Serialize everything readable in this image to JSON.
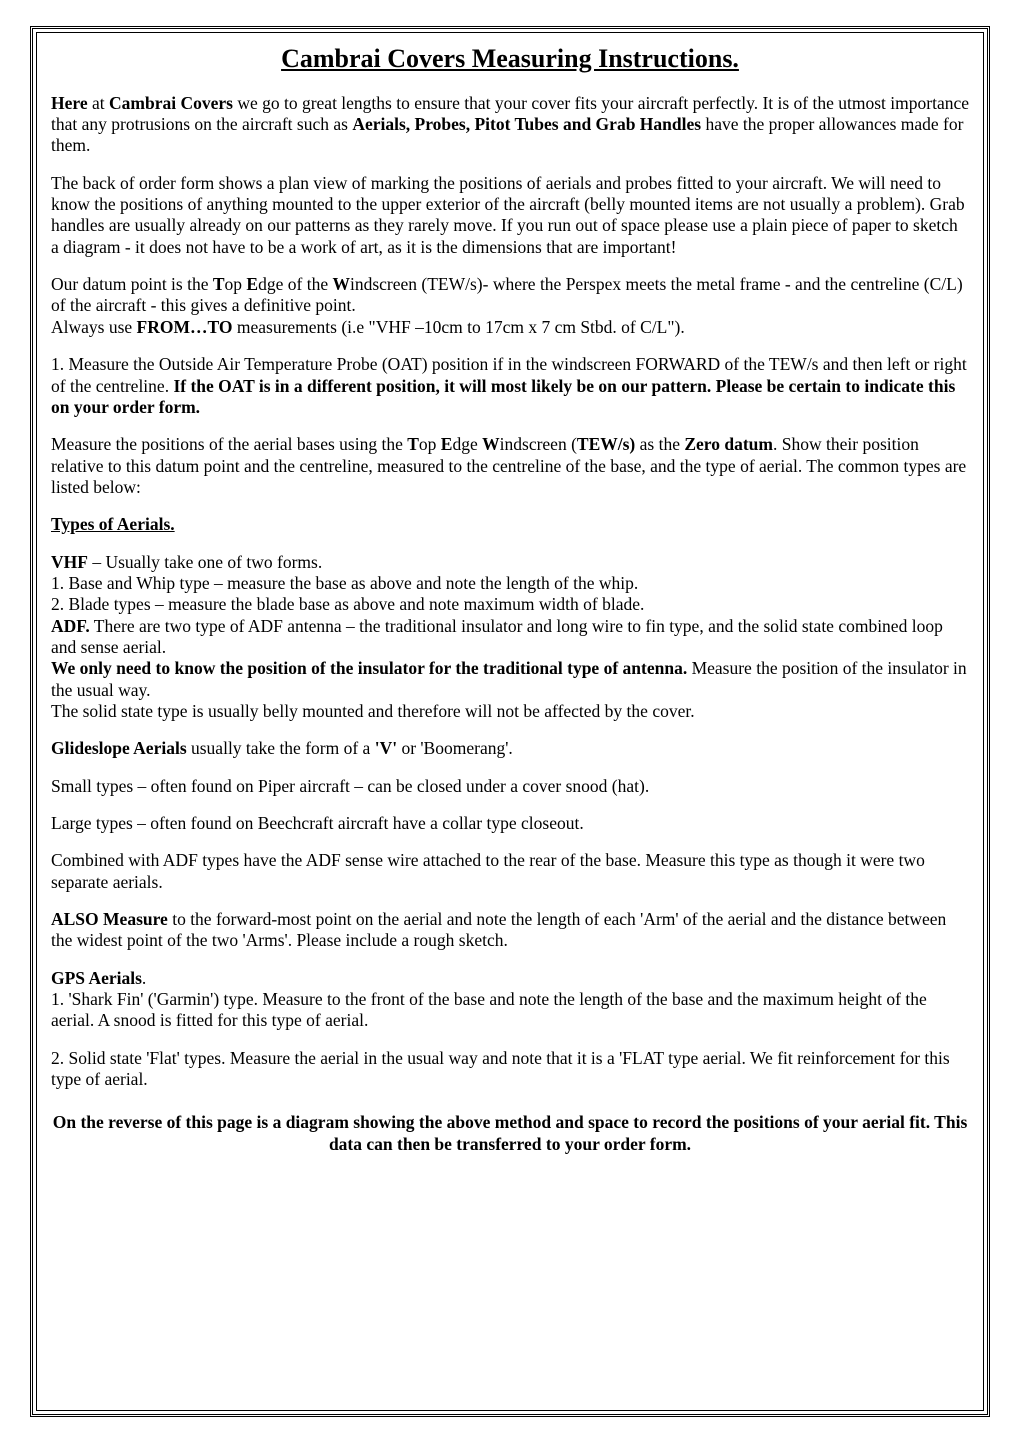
{
  "title": "Cambrai Covers Measuring Instructions.",
  "para1": {
    "lead_bold1": "Here",
    "mid1": " at ",
    "lead_bold2": "Cambrai Covers",
    "mid2": " we go to great lengths to ensure that your cover fits your aircraft perfectly.  It is of the utmost importance that any protrusions on the aircraft such as ",
    "bold_list": "Aerials, Probes, Pitot Tubes and Grab Handles",
    "tail": " have the proper allowances made for them."
  },
  "para2": "The back of order form shows a plan view of marking the positions of aerials and probes fitted to your aircraft.  We will need to know the positions of anything mounted to the upper exterior of the aircraft (belly mounted items are not usually a problem).  Grab handles are usually already on our patterns as they rarely move.  If you run out of space please use a plain piece of paper to sketch a diagram - it does not have to be a work of art, as it is the dimensions that are important!",
  "para3": {
    "pre": "Our datum point is the ",
    "T": "T",
    "t1": "op ",
    "E": "E",
    "t2": "dge of the ",
    "W": "W",
    "post": "indscreen (TEW/s)- where the Perspex meets the metal frame - and the centreline (C/L) of the aircraft - this gives a definitive point.",
    "line2a": "Always use ",
    "fromto": "FROM…TO",
    "line2b": "  measurements (i.e \"VHF –10cm to 17cm x 7 cm Stbd. of C/L\")."
  },
  "para4": {
    "line1": "1.  Measure the Outside Air Temperature Probe (OAT) position if in the windscreen FORWARD of the TEW/s and then left or right of the centreline.  ",
    "bold": "If the OAT is in a different position, it will most likely be on our pattern. Please be certain to indicate this on your order form."
  },
  "para5": {
    "pre": "Measure the positions of the aerial bases using the ",
    "T": "T",
    "t1": "op ",
    "E": "E",
    "t2": "dge ",
    "W": "W",
    "t3": "indscreen (",
    "tews": "TEW/s)",
    "t4": " as the ",
    "zero": "Zero datum",
    "post": ". Show their position relative to this datum point and the centreline, measured to the centreline of the base, and the type of aerial. The common types are listed below:"
  },
  "types_heading": "Types of Aerials.",
  "vhf": {
    "lead": "VHF",
    "rest": " – Usually take one of two forms.",
    "l1": "1.  Base and Whip type – measure the base as above and note the length of the whip.",
    "l2": "2.  Blade types – measure the blade base as above and note maximum width of blade."
  },
  "adf": {
    "lead": "ADF.",
    "rest": "  There are two type of ADF antenna – the traditional insulator and long wire to fin type, and the solid state combined loop and sense aerial.",
    "bold_line": "We only need to know the position of the insulator for the traditional type of antenna.",
    "tail2": "  Measure the position of the insulator in the usual way.",
    "line3": "The solid state type is usually belly mounted and therefore will not be affected by the cover."
  },
  "glideslope": {
    "lead": "Glideslope Aerials",
    "mid": " usually take the form of a ",
    "v": "'V'",
    "tail": " or 'Boomerang'."
  },
  "small_types": "Small types – often found on Piper aircraft – can be closed under a cover snood (hat).",
  "large_types": "Large types – often found on Beechcraft aircraft have a collar type closeout.",
  "combined": "Combined with ADF types have the ADF sense wire attached to the rear of the base. Measure this type as though it were two separate aerials.",
  "also": {
    "lead": "ALSO Measure",
    "rest": " to the forward-most point on the aerial and note the length of each 'Arm' of the aerial and the distance between the widest point of the two 'Arms'. Please include a rough sketch."
  },
  "gps": {
    "heading": "GPS Aerials",
    "dot": ".",
    "l1": "1.  'Shark Fin' ('Garmin') type.  Measure to the front of the base and note the length of the base and the maximum height of the aerial.  A snood is fitted for this type of aerial.",
    "l2": "2. Solid state 'Flat' types.  Measure the aerial in the usual way and note that it is a 'FLAT type aerial. We fit reinforcement for this type of aerial."
  },
  "final": "On the reverse of this page is a diagram showing the above method and space to record the positions of your aerial fit. This data can then be transferred to your order form."
}
